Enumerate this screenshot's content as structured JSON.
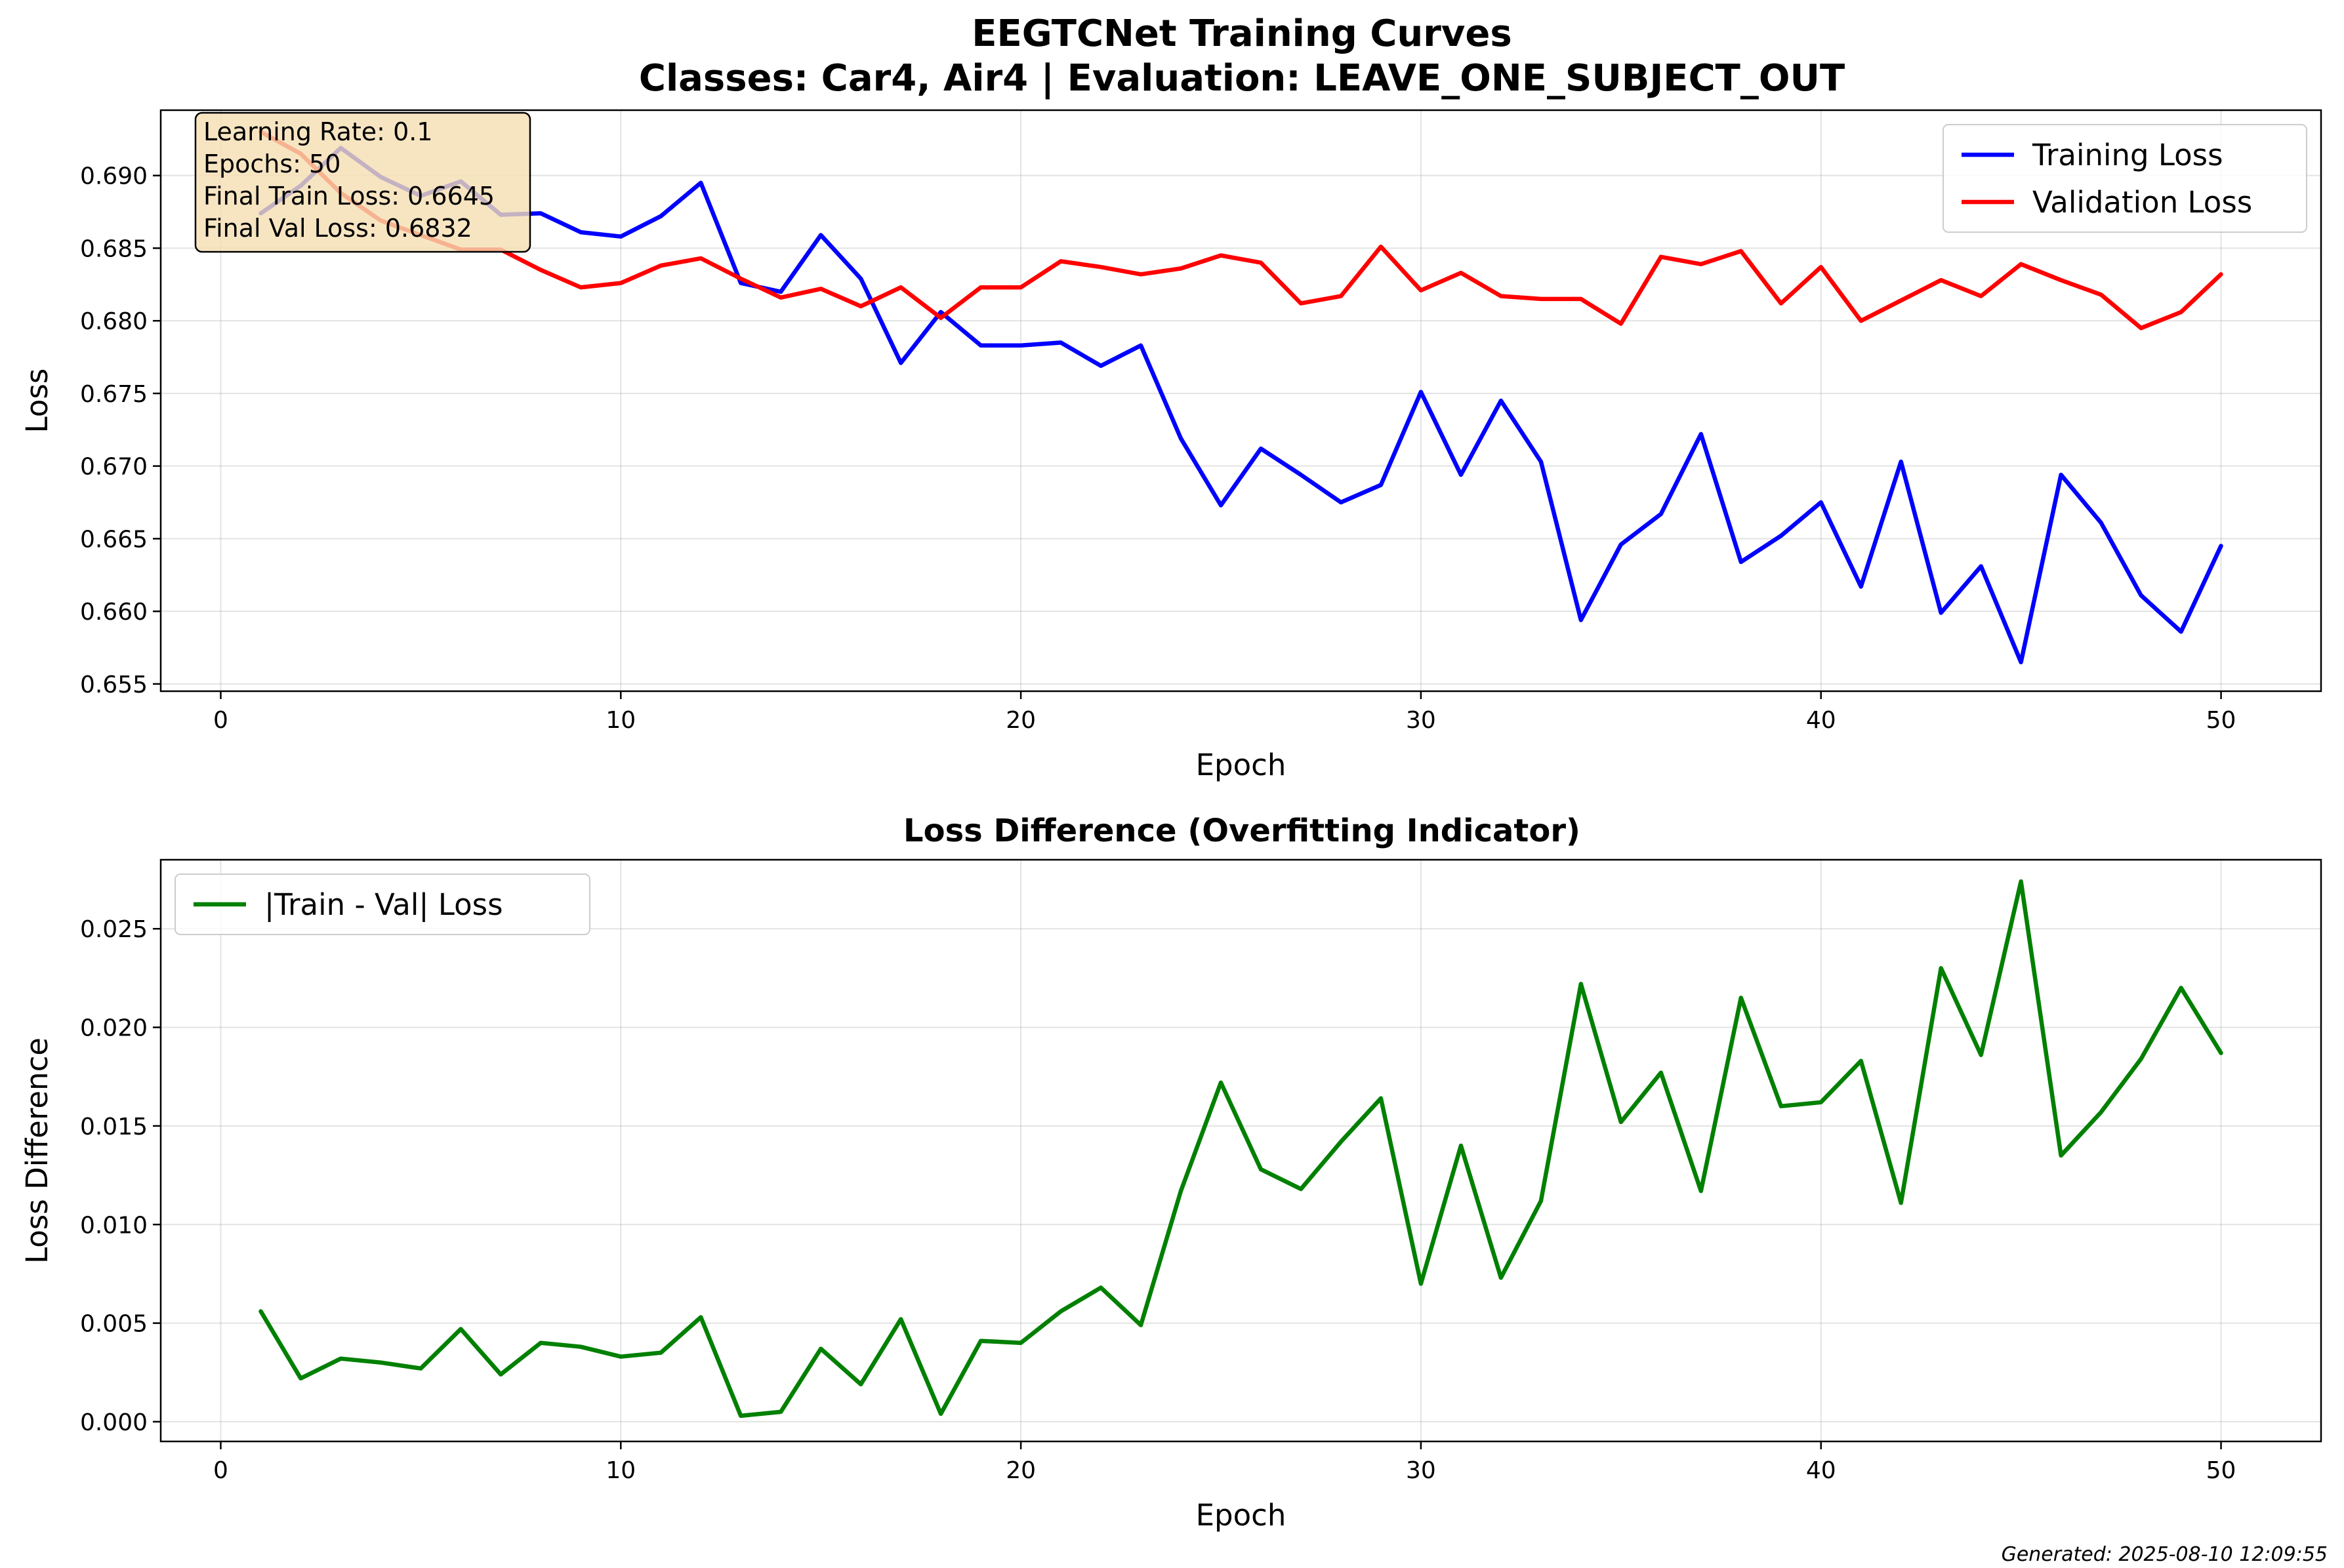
{
  "figure": {
    "title_line1": "EEGTCNet Training Curves",
    "title_line2": "Classes: Car4, Air4 | Evaluation: LEAVE_ONE_SUBJECT_OUT",
    "footer": "Generated: 2025-08-10 12:09:55"
  },
  "info_box": {
    "lines": [
      "Learning Rate: 0.1",
      "Epochs: 50",
      "Final Train Loss: 0.6645",
      "Final Val Loss: 0.6832"
    ],
    "background": "#f5deb3"
  },
  "chart_data": [
    {
      "type": "line",
      "title": "",
      "xlabel": "Epoch",
      "ylabel": "Loss",
      "xlim": [
        -1.5,
        52.5
      ],
      "ylim": [
        0.6545,
        0.6945
      ],
      "xticks": [
        0,
        10,
        20,
        30,
        40,
        50
      ],
      "xtick_labels": [
        "0",
        "10",
        "20",
        "30",
        "40",
        "50"
      ],
      "yticks": [
        0.655,
        0.66,
        0.665,
        0.67,
        0.675,
        0.68,
        0.685,
        0.69
      ],
      "ytick_labels": [
        "0.655",
        "0.660",
        "0.665",
        "0.670",
        "0.675",
        "0.680",
        "0.685",
        "0.690"
      ],
      "grid": true,
      "legend": "top-right",
      "x": [
        1,
        2,
        3,
        4,
        5,
        6,
        7,
        8,
        9,
        10,
        11,
        12,
        13,
        14,
        15,
        16,
        17,
        18,
        19,
        20,
        21,
        22,
        23,
        24,
        25,
        26,
        27,
        28,
        29,
        30,
        31,
        32,
        33,
        34,
        35,
        36,
        37,
        38,
        39,
        40,
        41,
        42,
        43,
        44,
        45,
        46,
        47,
        48,
        49,
        50
      ],
      "series": [
        {
          "name": "Training Loss",
          "color": "#0000ff",
          "values": [
            0.6874,
            0.6893,
            0.6919,
            0.6899,
            0.6886,
            0.6896,
            0.6873,
            0.6874,
            0.6861,
            0.6858,
            0.6872,
            0.6895,
            0.6826,
            0.682,
            0.6859,
            0.6829,
            0.6771,
            0.6806,
            0.6783,
            0.6783,
            0.6785,
            0.6769,
            0.6783,
            0.6719,
            0.6673,
            0.6712,
            0.6694,
            0.6675,
            0.6687,
            0.6751,
            0.6694,
            0.6745,
            0.6703,
            0.6594,
            0.6646,
            0.6667,
            0.6722,
            0.6634,
            0.6652,
            0.6675,
            0.6617,
            0.6703,
            0.6599,
            0.6631,
            0.6565,
            0.6694,
            0.6661,
            0.6611,
            0.6586,
            0.6645
          ]
        },
        {
          "name": "Validation Loss",
          "color": "#ff0000",
          "values": [
            0.693,
            0.6915,
            0.6888,
            0.6869,
            0.6859,
            0.6849,
            0.6849,
            0.6835,
            0.6823,
            0.6826,
            0.6838,
            0.6843,
            0.6829,
            0.6816,
            0.6822,
            0.681,
            0.6823,
            0.6802,
            0.6823,
            0.6823,
            0.6841,
            0.6837,
            0.6832,
            0.6836,
            0.6845,
            0.684,
            0.6812,
            0.6817,
            0.6851,
            0.6821,
            0.6833,
            0.6817,
            0.6815,
            0.6815,
            0.6798,
            0.6844,
            0.6839,
            0.6848,
            0.6812,
            0.6837,
            0.68,
            0.6814,
            0.6828,
            0.6817,
            0.6839,
            0.6828,
            0.6818,
            0.6795,
            0.6806,
            0.6832
          ]
        }
      ]
    },
    {
      "type": "line",
      "title": "Loss Difference (Overfitting Indicator)",
      "xlabel": "Epoch",
      "ylabel": "Loss Difference",
      "xlim": [
        -1.5,
        52.5
      ],
      "ylim": [
        -0.001,
        0.0285
      ],
      "xticks": [
        0,
        10,
        20,
        30,
        40,
        50
      ],
      "xtick_labels": [
        "0",
        "10",
        "20",
        "30",
        "40",
        "50"
      ],
      "yticks": [
        0.0,
        0.005,
        0.01,
        0.015,
        0.02,
        0.025
      ],
      "ytick_labels": [
        "0.000",
        "0.005",
        "0.010",
        "0.015",
        "0.020",
        "0.025"
      ],
      "grid": true,
      "legend": "top-left",
      "x": [
        1,
        2,
        3,
        4,
        5,
        6,
        7,
        8,
        9,
        10,
        11,
        12,
        13,
        14,
        15,
        16,
        17,
        18,
        19,
        20,
        21,
        22,
        23,
        24,
        25,
        26,
        27,
        28,
        29,
        30,
        31,
        32,
        33,
        34,
        35,
        36,
        37,
        38,
        39,
        40,
        41,
        42,
        43,
        44,
        45,
        46,
        47,
        48,
        49,
        50
      ],
      "series": [
        {
          "name": "|Train - Val| Loss",
          "color": "#008000",
          "values": [
            0.0056,
            0.0022,
            0.0032,
            0.003,
            0.0027,
            0.0047,
            0.0024,
            0.004,
            0.0038,
            0.0033,
            0.0035,
            0.0053,
            0.0003,
            0.0005,
            0.0037,
            0.0019,
            0.0052,
            0.0004,
            0.0041,
            0.004,
            0.0056,
            0.0068,
            0.0049,
            0.0117,
            0.0172,
            0.0128,
            0.0118,
            0.0142,
            0.0164,
            0.007,
            0.014,
            0.0073,
            0.0112,
            0.0222,
            0.0152,
            0.0177,
            0.0117,
            0.0215,
            0.016,
            0.0162,
            0.0183,
            0.0111,
            0.023,
            0.0186,
            0.0274,
            0.0135,
            0.0157,
            0.0184,
            0.022,
            0.0187
          ]
        }
      ]
    }
  ]
}
